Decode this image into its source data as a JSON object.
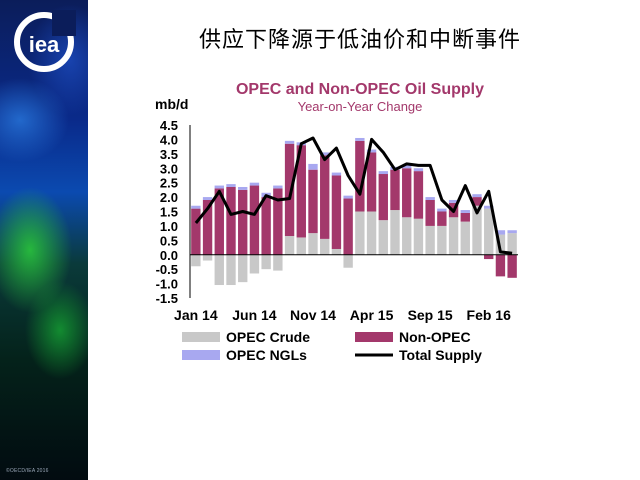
{
  "slide": {
    "title": "供应下降源于低油价和中断事件",
    "copyright": "©OECD/IEA 2016",
    "logo_text": "iea"
  },
  "colors": {
    "opec_crude": "#c8c8c8",
    "non_opec": "#a3386b",
    "opec_ngls": "#a8a8f0",
    "total_supply": "#000000",
    "chart_title": "#a3386b",
    "chart_subtitle": "#a3386b"
  },
  "chart_data": {
    "type": "bar",
    "stacked": true,
    "title": "OPEC and Non-OPEC Oil Supply",
    "subtitle": "Year-on-Year Change",
    "ylabel": "mb/d",
    "ylim": [
      -1.5,
      4.5
    ],
    "yticks": [
      "4.5",
      "4.0",
      "3.5",
      "3.0",
      "2.5",
      "2.0",
      "1.5",
      "1.0",
      "0.5",
      "0.0",
      "-0.5",
      "-1.0",
      "-1.5"
    ],
    "xtick_labels": [
      "Jan 14",
      "Jun 14",
      "Nov 14",
      "Apr 15",
      "Sep 15",
      "Feb 16"
    ],
    "xtick_index": [
      0,
      5,
      10,
      15,
      20,
      25
    ],
    "categories": [
      "Jan 14",
      "Feb 14",
      "Mar 14",
      "Apr 14",
      "May 14",
      "Jun 14",
      "Jul 14",
      "Aug 14",
      "Sep 14",
      "Oct 14",
      "Nov 14",
      "Dec 14",
      "Jan 15",
      "Feb 15",
      "Mar 15",
      "Apr 15",
      "May 15",
      "Jun 15",
      "Jul 15",
      "Aug 15",
      "Sep 15",
      "Oct 15",
      "Nov 15",
      "Dec 15",
      "Jan 16",
      "Feb 16",
      "Mar 16",
      "Apr 16"
    ],
    "series": [
      {
        "name": "OPEC Crude",
        "kind": "bar",
        "values": [
          -0.4,
          -0.2,
          -1.05,
          -1.05,
          -0.95,
          -0.65,
          -0.5,
          -0.55,
          0.65,
          0.6,
          0.75,
          0.55,
          0.2,
          -0.45,
          1.5,
          1.5,
          1.2,
          1.55,
          1.3,
          1.25,
          1.0,
          1.0,
          1.3,
          1.15,
          1.7,
          1.6,
          0.7,
          0.75
        ]
      },
      {
        "name": "Non-OPEC",
        "kind": "bar",
        "values": [
          1.6,
          1.9,
          2.3,
          2.35,
          2.25,
          2.4,
          2.0,
          2.3,
          3.2,
          3.2,
          2.2,
          2.9,
          2.55,
          1.95,
          2.45,
          2.05,
          1.6,
          1.4,
          1.7,
          1.65,
          0.9,
          0.5,
          0.5,
          0.3,
          0.3,
          -0.15,
          -0.75,
          -0.8
        ]
      },
      {
        "name": "OPEC NGLs",
        "kind": "bar",
        "values": [
          0.1,
          0.1,
          0.1,
          0.1,
          0.1,
          0.1,
          0.15,
          0.1,
          0.1,
          0.1,
          0.2,
          0.1,
          0.1,
          0.1,
          0.1,
          0.1,
          0.1,
          0.1,
          0.1,
          0.1,
          0.1,
          0.1,
          0.1,
          0.1,
          0.1,
          0.1,
          0.15,
          0.1
        ]
      },
      {
        "name": "Total Supply",
        "kind": "line",
        "values": [
          1.1,
          1.6,
          2.2,
          1.4,
          1.5,
          1.4,
          2.05,
          1.9,
          1.95,
          3.85,
          4.05,
          3.3,
          3.7,
          2.75,
          2.1,
          4.0,
          3.55,
          2.95,
          3.15,
          3.1,
          3.1,
          1.9,
          1.5,
          2.4,
          1.45,
          2.2,
          0.1,
          0.05
        ]
      }
    ],
    "legend": [
      {
        "name": "OPEC Crude",
        "kind": "box"
      },
      {
        "name": "Non-OPEC",
        "kind": "box"
      },
      {
        "name": "OPEC NGLs",
        "kind": "box"
      },
      {
        "name": "Total Supply",
        "kind": "line"
      }
    ],
    "legend_position": "bottom",
    "grid": false
  }
}
